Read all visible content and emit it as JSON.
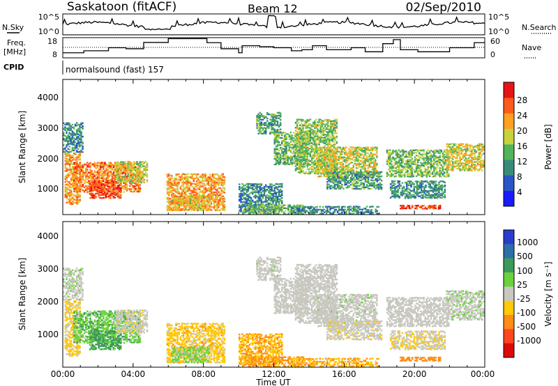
{
  "header": {
    "station": "Saskatoon (fitACF)",
    "beam": "Beam 12",
    "date": "02/Sep/2010"
  },
  "noise_panel": {
    "left_label": "N.Sky",
    "right_label": "N.Search",
    "left_ticks": [
      "10^5",
      "10^0"
    ],
    "right_ticks": [
      "10^5",
      "10^0"
    ]
  },
  "freq_panel": {
    "left_label_1": "Freq.",
    "left_label_2": "[MHz]",
    "right_label": "Nave",
    "left_ticks": [
      "18",
      "8"
    ],
    "right_ticks": [
      "60",
      "0"
    ]
  },
  "cpid": {
    "label": "CPID",
    "value": "normalsound (fast) 157"
  },
  "x_ticks": [
    "00:00",
    "04:00",
    "08:00",
    "12:00",
    "16:00",
    "20:00",
    "00:00"
  ],
  "x_axis_label": "Time UT",
  "y_axis_label": "Slant Range [km]",
  "y_ticks": [
    "1000",
    "2000",
    "3000",
    "4000"
  ],
  "power_colorbar": {
    "label": "Power [dB]",
    "ticks": [
      "4",
      "8",
      "12",
      "16",
      "20",
      "24",
      "28"
    ],
    "colors": [
      "#1a1aff",
      "#2a55c8",
      "#3a8a7a",
      "#52b45a",
      "#c8d23c",
      "#ffa023",
      "#ff5a1e",
      "#e61414"
    ]
  },
  "velocity_colorbar": {
    "label": "Velocity [m s⁻¹]",
    "ticks": [
      "1000",
      "500",
      "100",
      "25",
      "-25",
      "-100",
      "-500",
      "-1000"
    ],
    "colors": [
      "#2a3ccc",
      "#2e6ea8",
      "#3c9a5a",
      "#6ad23c",
      "#c8c8c0",
      "#ffc80a",
      "#ff8c14",
      "#ff461e",
      "#dc0a0a"
    ]
  },
  "chart_data": {
    "type": "heatmap",
    "x_range_hours": [
      0,
      24
    ],
    "y_range_km": [
      180,
      4600
    ],
    "noise_sky_log10_range": [
      0,
      5
    ],
    "noise_search_log10_range": [
      0,
      5
    ],
    "freq_range_mhz": [
      8,
      18
    ],
    "nave_range": [
      0,
      60
    ],
    "scatter_regions": [
      {
        "t0": 0.1,
        "t1": 1.0,
        "r0": 500,
        "r1": 2200,
        "power": 22,
        "velocity": -40
      },
      {
        "t0": 0.6,
        "t1": 4.4,
        "r0": 900,
        "r1": 1900,
        "power": 24,
        "velocity": 70
      },
      {
        "t0": 1.5,
        "t1": 3.3,
        "r0": 700,
        "r1": 1300,
        "power": 27,
        "velocity": 150
      },
      {
        "t0": 0.0,
        "t1": 1.2,
        "r0": 2200,
        "r1": 3200,
        "power": 10,
        "velocity": 10
      },
      {
        "t0": 3.0,
        "t1": 4.8,
        "r0": 1200,
        "r1": 1900,
        "power": 18,
        "velocity": -10
      },
      {
        "t0": 5.9,
        "t1": 9.2,
        "r0": 300,
        "r1": 1500,
        "power": 22,
        "velocity": -60
      },
      {
        "t0": 6.2,
        "t1": 8.4,
        "r0": 300,
        "r1": 800,
        "power": 20,
        "velocity": 40
      },
      {
        "t0": 10.0,
        "t1": 12.5,
        "r0": 250,
        "r1": 1200,
        "power": 10,
        "velocity": -90
      },
      {
        "t0": 10.2,
        "t1": 13.8,
        "r0": 180,
        "r1": 500,
        "power": 14,
        "velocity": -150
      },
      {
        "t0": 11.0,
        "t1": 12.4,
        "r0": 2800,
        "r1": 3500,
        "power": 12,
        "velocity": 5
      },
      {
        "t0": 12.0,
        "t1": 14.0,
        "r0": 1800,
        "r1": 2900,
        "power": 14,
        "velocity": 0
      },
      {
        "t0": 13.2,
        "t1": 15.6,
        "r0": 1500,
        "r1": 3300,
        "power": 16,
        "velocity": 0
      },
      {
        "t0": 14.4,
        "t1": 17.9,
        "r0": 1400,
        "r1": 2400,
        "power": 18,
        "velocity": 5
      },
      {
        "t0": 15.0,
        "t1": 18.2,
        "r0": 1000,
        "r1": 1600,
        "power": 12,
        "velocity": -10
      },
      {
        "t0": 13.0,
        "t1": 18.0,
        "r0": 180,
        "r1": 450,
        "power": 10,
        "velocity": -80
      },
      {
        "t0": 18.4,
        "t1": 22.0,
        "r0": 1400,
        "r1": 2300,
        "power": 15,
        "velocity": 0
      },
      {
        "t0": 18.6,
        "t1": 21.8,
        "r0": 700,
        "r1": 1300,
        "power": 11,
        "velocity": -20
      },
      {
        "t0": 19.0,
        "t1": 21.5,
        "r0": 350,
        "r1": 500,
        "power": 28,
        "velocity": -300
      },
      {
        "t0": 21.8,
        "t1": 24.0,
        "r0": 1600,
        "r1": 2500,
        "power": 19,
        "velocity": 10
      }
    ]
  }
}
